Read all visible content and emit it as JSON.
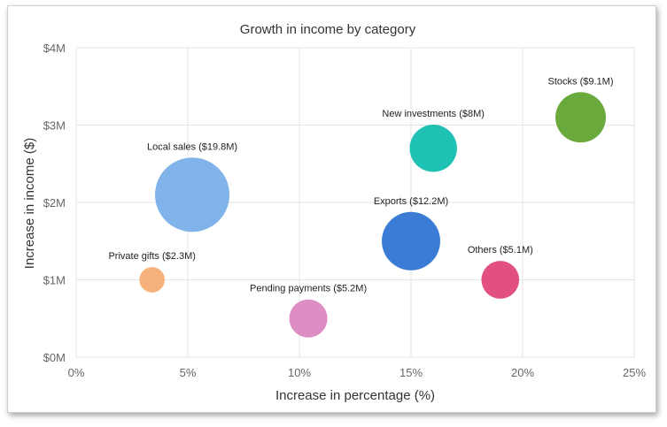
{
  "chart_data": {
    "type": "bubble",
    "title": "Growth in income by category",
    "xlabel": "Increase in percentage (%)",
    "ylabel": "Increase in income ($)",
    "xlim": [
      0,
      25
    ],
    "ylim": [
      0,
      4
    ],
    "x_ticks": [
      0,
      5,
      10,
      15,
      20,
      25
    ],
    "x_tick_labels": [
      "0%",
      "5%",
      "10%",
      "15%",
      "20%",
      "25%"
    ],
    "y_ticks": [
      0,
      1,
      2,
      3,
      4
    ],
    "y_tick_labels": [
      "$0M",
      "$1M",
      "$2M",
      "$3M",
      "$4M"
    ],
    "grid": true,
    "series": [
      {
        "x": 5.2,
        "y": 2.1,
        "size": 19.8,
        "label": "Local sales ($19.8M)",
        "color": "#7fb3ea"
      },
      {
        "x": 3.4,
        "y": 1.0,
        "size": 2.3,
        "label": "Private gifts ($2.3M)",
        "color": "#f5b07b"
      },
      {
        "x": 10.4,
        "y": 0.5,
        "size": 5.2,
        "label": "Pending payments ($5.2M)",
        "color": "#de8cc4"
      },
      {
        "x": 15.0,
        "y": 1.5,
        "size": 12.2,
        "label": "Exports ($12.2M)",
        "color": "#3b7dd6"
      },
      {
        "x": 16.0,
        "y": 2.7,
        "size": 8,
        "label": "New investments ($8M)",
        "color": "#1ec1b3"
      },
      {
        "x": 19.0,
        "y": 1.0,
        "size": 5.1,
        "label": "Others ($5.1M)",
        "color": "#e2507f"
      },
      {
        "x": 22.6,
        "y": 3.1,
        "size": 9.1,
        "label": "Stocks ($9.1M)",
        "color": "#6aaa3c"
      }
    ]
  }
}
